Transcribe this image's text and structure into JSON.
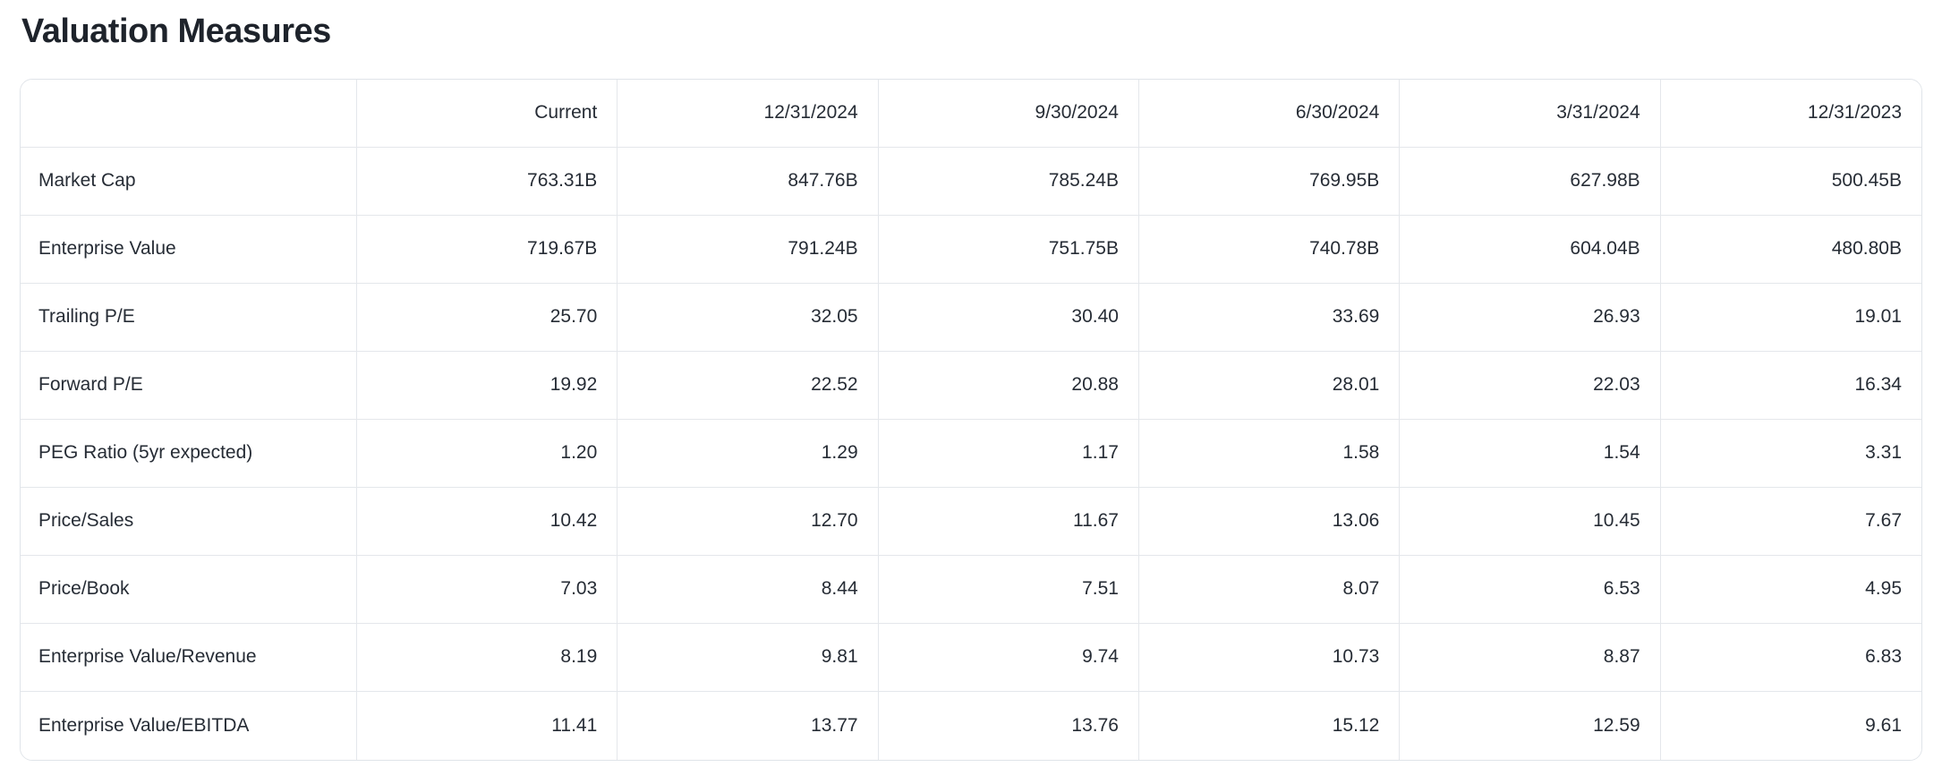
{
  "page": {
    "title": "Valuation Measures"
  },
  "colors": {
    "background": "#ffffff",
    "text": "#262c35",
    "title_text": "#1e232b",
    "border": "#e0e4e9"
  },
  "table": {
    "columns": [
      "",
      "Current",
      "12/31/2024",
      "9/30/2024",
      "6/30/2024",
      "3/31/2024",
      "12/31/2023"
    ],
    "rows": [
      {
        "label": "Market Cap",
        "values": [
          "763.31B",
          "847.76B",
          "785.24B",
          "769.95B",
          "627.98B",
          "500.45B"
        ]
      },
      {
        "label": "Enterprise Value",
        "values": [
          "719.67B",
          "791.24B",
          "751.75B",
          "740.78B",
          "604.04B",
          "480.80B"
        ]
      },
      {
        "label": "Trailing P/E",
        "values": [
          "25.70",
          "32.05",
          "30.40",
          "33.69",
          "26.93",
          "19.01"
        ]
      },
      {
        "label": "Forward P/E",
        "values": [
          "19.92",
          "22.52",
          "20.88",
          "28.01",
          "22.03",
          "16.34"
        ]
      },
      {
        "label": "PEG Ratio (5yr expected)",
        "values": [
          "1.20",
          "1.29",
          "1.17",
          "1.58",
          "1.54",
          "3.31"
        ]
      },
      {
        "label": "Price/Sales",
        "values": [
          "10.42",
          "12.70",
          "11.67",
          "13.06",
          "10.45",
          "7.67"
        ]
      },
      {
        "label": "Price/Book",
        "values": [
          "7.03",
          "8.44",
          "7.51",
          "8.07",
          "6.53",
          "4.95"
        ]
      },
      {
        "label": "Enterprise Value/Revenue",
        "values": [
          "8.19",
          "9.81",
          "9.74",
          "10.73",
          "8.87",
          "6.83"
        ]
      },
      {
        "label": "Enterprise Value/EBITDA",
        "values": [
          "11.41",
          "13.77",
          "13.76",
          "15.12",
          "12.59",
          "9.61"
        ]
      }
    ]
  }
}
